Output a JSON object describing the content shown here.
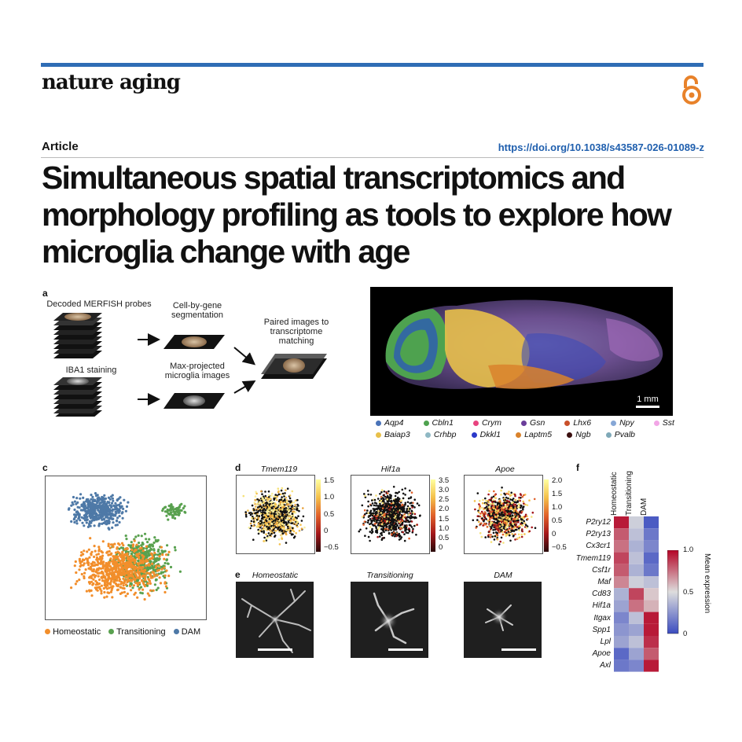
{
  "journal": "nature aging",
  "article_type": "Article",
  "doi": "https://doi.org/10.1038/s43587-026-01089-z",
  "title_lines": [
    "Simultaneous spatial transcriptomics and",
    "morphology profiling as tools to explore how",
    "microglia change with age"
  ],
  "colors": {
    "accent": "#2f6db5",
    "oa": "#e8822a",
    "homeostatic": "#f28e2b",
    "transitioning": "#59a14f",
    "dam": "#4e79a7"
  },
  "panel_a": {
    "letter": "a",
    "labels": {
      "merfish": "Decoded MERFISH probes",
      "cellgene": "Cell-by-gene\nsegmentation",
      "paired": "Paired images to\ntranscriptome\nmatching",
      "iba1": "IBA1 staining",
      "maxproj": "Max-projected\nmicroglia images"
    }
  },
  "panel_b": {
    "scalebar_label": "1 mm",
    "legend_row1": [
      {
        "name": "Aqp4",
        "color": "#4a73b8"
      },
      {
        "name": "Cbln1",
        "color": "#4ea24f"
      },
      {
        "name": "Crym",
        "color": "#e8437f"
      },
      {
        "name": "Gsn",
        "color": "#6a3d9a"
      },
      {
        "name": "Lhx6",
        "color": "#c9502a"
      },
      {
        "name": "Npy",
        "color": "#86a7d6"
      },
      {
        "name": "Sst",
        "color": "#f2a6e6"
      }
    ],
    "legend_row2": [
      {
        "name": "Baiap3",
        "color": "#e8c04a"
      },
      {
        "name": "Crhbp",
        "color": "#8fb8c4"
      },
      {
        "name": "Dkkl1",
        "color": "#2a38c9"
      },
      {
        "name": "Laptm5",
        "color": "#d9822b"
      },
      {
        "name": "Ngb",
        "color": "#3b1010"
      },
      {
        "name": "Pvalb",
        "color": "#7fa9b8"
      }
    ]
  },
  "panel_c": {
    "letter": "c",
    "legend": [
      "Homeostatic",
      "Transitioning",
      "DAM"
    ]
  },
  "panel_d": {
    "letter": "d",
    "plots": [
      {
        "title": "Tmem119",
        "ticks": [
          "1.5",
          "1.0",
          "0.5",
          "0",
          "−0.5"
        ]
      },
      {
        "title": "Hif1a",
        "ticks": [
          "3.5",
          "3.0",
          "2.5",
          "2.0",
          "1.5",
          "1.0",
          "0.5",
          "0"
        ]
      },
      {
        "title": "Apoe",
        "ticks": [
          "2.0",
          "1.5",
          "1.0",
          "0.5",
          "0",
          "−0.5"
        ]
      }
    ]
  },
  "panel_e": {
    "letter": "e",
    "titles": [
      "Homeostatic",
      "Transitioning",
      "DAM"
    ]
  },
  "panel_f": {
    "letter": "f",
    "columns": [
      "Homeostatic",
      "Transitioning",
      "DAM"
    ],
    "genes": [
      "P2ry12",
      "P2ry13",
      "Cx3cr1",
      "Tmem119",
      "Csf1r",
      "Maf",
      "Cd83",
      "Hif1a",
      "Itgax",
      "Spp1",
      "Lpl",
      "Apoe",
      "Axl"
    ],
    "values": [
      [
        0.95,
        0.45,
        0.05
      ],
      [
        0.8,
        0.4,
        0.15
      ],
      [
        0.75,
        0.35,
        0.2
      ],
      [
        0.85,
        0.4,
        0.1
      ],
      [
        0.8,
        0.35,
        0.15
      ],
      [
        0.7,
        0.45,
        0.4
      ],
      [
        0.35,
        0.85,
        0.55
      ],
      [
        0.3,
        0.75,
        0.6
      ],
      [
        0.2,
        0.4,
        0.95
      ],
      [
        0.25,
        0.3,
        0.95
      ],
      [
        0.3,
        0.4,
        0.9
      ],
      [
        0.1,
        0.3,
        0.8
      ],
      [
        0.15,
        0.2,
        0.95
      ]
    ],
    "colorbar_title": "Mean expression",
    "colorbar_ticks": [
      "1.0",
      "0.5",
      "0"
    ]
  }
}
